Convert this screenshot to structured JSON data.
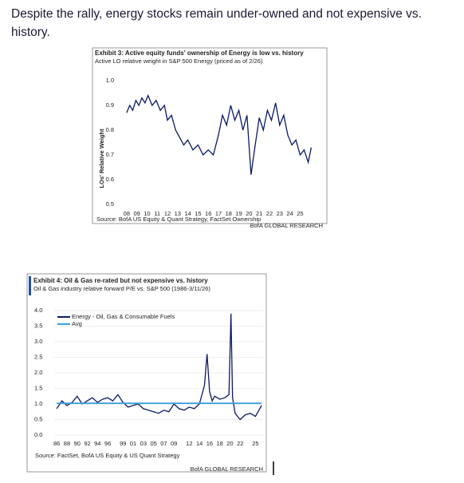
{
  "heading": "Despite the rally, energy stocks remain under-owned and not expensive vs. history.",
  "chart_data": [
    {
      "type": "line",
      "title": "Exhibit 3: Active equity funds' ownership of Energy is low vs. history",
      "subtitle": "Active LO relative weight in S&P 500 Energy (priced as of 2/26)",
      "ylabel": "LOs' Relative Weight",
      "source": "Source: BofA US Equity & Quant Strategy, FactSet Ownership",
      "credit": "BofA GLOBAL RESEARCH",
      "xlim": [
        2007.7,
        2026.3
      ],
      "xticks": [
        {
          "value": 2008,
          "label": "08"
        },
        {
          "value": 2009,
          "label": "09"
        },
        {
          "value": 2010,
          "label": "10"
        },
        {
          "value": 2011,
          "label": "11"
        },
        {
          "value": 2012,
          "label": "12"
        },
        {
          "value": 2013,
          "label": "13"
        },
        {
          "value": 2014,
          "label": "14"
        },
        {
          "value": 2015,
          "label": "15"
        },
        {
          "value": 2016,
          "label": "16"
        },
        {
          "value": 2017,
          "label": "17"
        },
        {
          "value": 2018,
          "label": "18"
        },
        {
          "value": 2019,
          "label": "19"
        },
        {
          "value": 2020,
          "label": "20"
        },
        {
          "value": 2021,
          "label": "21"
        },
        {
          "value": 2022,
          "label": "22"
        },
        {
          "value": 2023,
          "label": "23"
        },
        {
          "value": 2024,
          "label": "24"
        },
        {
          "value": 2025,
          "label": "25"
        }
      ],
      "ylim": [
        0.5,
        1.0
      ],
      "yticks": [
        0.5,
        0.6,
        0.7,
        0.8,
        0.9,
        {
          "value": 1,
          "label": "1.0"
        }
      ],
      "series": [
        {
          "color": "#0a1a66",
          "x": [
            2008.0,
            2008.3,
            2008.6,
            2008.9,
            2009.2,
            2009.5,
            2009.8,
            2010.1,
            2010.5,
            2010.9,
            2011.3,
            2011.7,
            2012.0,
            2012.4,
            2012.8,
            2013.2,
            2013.6,
            2014.0,
            2014.5,
            2015.0,
            2015.5,
            2016.0,
            2016.5,
            2017.0,
            2017.4,
            2017.8,
            2018.2,
            2018.6,
            2019.0,
            2019.4,
            2019.8,
            2020.2,
            2020.6,
            2021.0,
            2021.4,
            2021.8,
            2022.2,
            2022.6,
            2023.0,
            2023.4,
            2023.8,
            2024.2,
            2024.6,
            2025.0,
            2025.4,
            2025.8,
            2026.1
          ],
          "values": [
            0.87,
            0.9,
            0.88,
            0.92,
            0.9,
            0.93,
            0.91,
            0.94,
            0.9,
            0.92,
            0.88,
            0.9,
            0.84,
            0.86,
            0.8,
            0.77,
            0.74,
            0.76,
            0.72,
            0.74,
            0.7,
            0.72,
            0.7,
            0.78,
            0.86,
            0.82,
            0.9,
            0.84,
            0.88,
            0.8,
            0.86,
            0.62,
            0.74,
            0.85,
            0.8,
            0.88,
            0.84,
            0.91,
            0.82,
            0.86,
            0.78,
            0.74,
            0.76,
            0.7,
            0.72,
            0.67,
            0.73
          ]
        }
      ]
    },
    {
      "type": "line",
      "title": "Exhibit 4: Oil & Gas re-rated but not expensive vs. history",
      "subtitle": "Oil & Gas industry relative forward P/E vs. S&P 500 (1986-3/11/26)",
      "source": "Source: FactSet, BofA US Equity & US Quant Strategy",
      "credit": "BofA GLOBAL RESEARCH",
      "xlim": [
        1985.5,
        2026.5
      ],
      "xticks": [
        {
          "value": 1986,
          "label": "86"
        },
        {
          "value": 1988,
          "label": "88"
        },
        {
          "value": 1990,
          "label": "90"
        },
        {
          "value": 1992,
          "label": "92"
        },
        {
          "value": 1994,
          "label": "94"
        },
        {
          "value": 1996,
          "label": "96"
        },
        {
          "value": 1999,
          "label": "99"
        },
        {
          "value": 2001,
          "label": "01"
        },
        {
          "value": 2003,
          "label": "03"
        },
        {
          "value": 2005,
          "label": "05"
        },
        {
          "value": 2007,
          "label": "07"
        },
        {
          "value": 2009,
          "label": "09"
        },
        {
          "value": 2012,
          "label": "12"
        },
        {
          "value": 2014,
          "label": "14"
        },
        {
          "value": 2016,
          "label": "16"
        },
        {
          "value": 2018,
          "label": "18"
        },
        {
          "value": 2020,
          "label": "20"
        },
        {
          "value": 2022,
          "label": "22"
        },
        {
          "value": 2025,
          "label": "25"
        }
      ],
      "ylim": [
        0,
        4
      ],
      "yticks": [
        {
          "value": 0,
          "label": "0.0"
        },
        0.5,
        {
          "value": 1,
          "label": "1.0"
        },
        1.5,
        {
          "value": 2,
          "label": "2.0"
        },
        2.5,
        {
          "value": 3,
          "label": "3.0"
        },
        3.5,
        {
          "value": 4,
          "label": "4.0"
        }
      ],
      "grid": true,
      "legend": "upper left",
      "series": [
        {
          "name": "Energy - Oil, Gas & Consumable Fuels",
          "color": "#0a1a66",
          "x": [
            1986,
            1987,
            1988,
            1989,
            1990,
            1991,
            1992,
            1993,
            1994,
            1995,
            1996,
            1997,
            1998,
            1999,
            2000,
            2001,
            2002,
            2003,
            2004,
            2005,
            2006,
            2007,
            2008,
            2009,
            2010,
            2011,
            2012,
            2013,
            2014,
            2015,
            2015.5,
            2016,
            2016.5,
            2017,
            2018,
            2019,
            2019.8,
            2020.2,
            2020.5,
            2021,
            2021.5,
            2022,
            2023,
            2024,
            2025,
            2025.5,
            2026.2
          ],
          "values": [
            0.85,
            1.1,
            0.95,
            1.05,
            1.25,
            1.0,
            1.1,
            1.2,
            1.05,
            1.15,
            1.2,
            1.1,
            1.3,
            1.05,
            0.9,
            0.95,
            1.0,
            0.85,
            0.8,
            0.75,
            0.7,
            0.8,
            0.75,
            1.0,
            0.85,
            0.8,
            0.9,
            0.85,
            1.0,
            1.6,
            2.6,
            1.4,
            1.1,
            1.25,
            1.15,
            1.2,
            1.3,
            3.9,
            1.2,
            0.7,
            0.6,
            0.5,
            0.65,
            0.7,
            0.6,
            0.75,
            0.95
          ]
        },
        {
          "name": "Avg",
          "color": "#3aa0d8",
          "x": [
            1986,
            2026.2
          ],
          "values": [
            1.02,
            1.02
          ]
        }
      ]
    }
  ]
}
